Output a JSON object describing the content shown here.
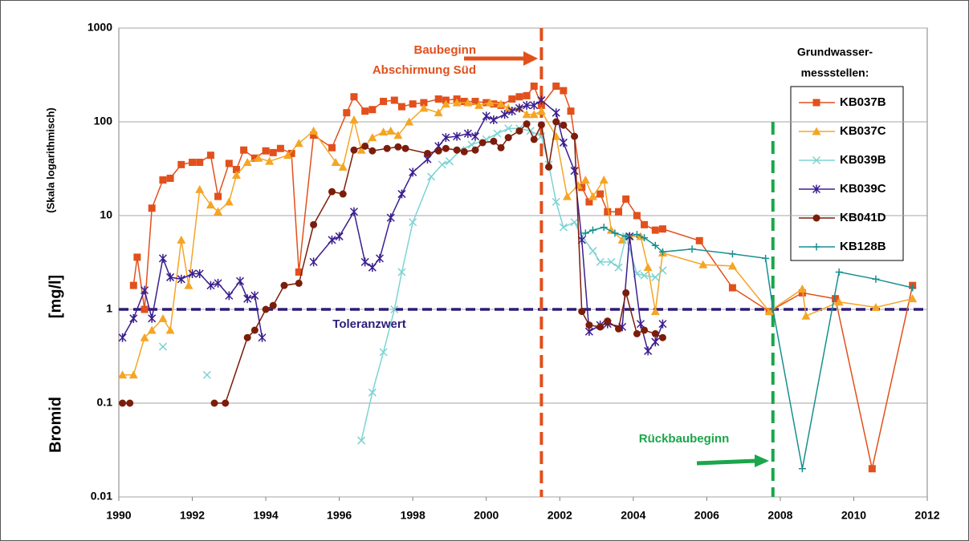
{
  "chart_data": {
    "type": "line",
    "ylabel": [
      "Bromid",
      "[mg/l]"
    ],
    "ylabel_note": "(Skala logarithmisch)",
    "legend_title": [
      "Grundwasser-",
      "messstellen:"
    ],
    "legend": "right",
    "log_y": true,
    "grid": true,
    "xlim": [
      1990,
      2012
    ],
    "xticks": [
      1990,
      1992,
      1994,
      1996,
      1998,
      2000,
      2002,
      2004,
      2006,
      2008,
      2010,
      2012
    ],
    "ylim": [
      0.01,
      1000
    ],
    "yticks": [
      0.01,
      0.1,
      1,
      10,
      100,
      1000
    ],
    "reference_lines": [
      {
        "axis": "y",
        "value": 1,
        "label": [
          "Toleranzwert"
        ],
        "color": "#2e1c7a"
      },
      {
        "axis": "x",
        "value": 2001.5,
        "label": [
          "Baubeginn",
          "Abschirmung Süd"
        ],
        "color": "#e2501c"
      },
      {
        "axis": "x",
        "value": 2007.8,
        "range": [
          0.01,
          100
        ],
        "label": [
          "Rückbaubeginn"
        ],
        "color": "#1aa64a"
      }
    ],
    "series": [
      {
        "name": "KB037B",
        "color": "#e2501c",
        "marker": "square",
        "x": [
          1990.4,
          1990.5,
          1990.7,
          1990.9,
          1991.2,
          1991.4,
          1991.7,
          1992.0,
          1992.2,
          1992.5,
          1992.7,
          1993.0,
          1993.2,
          1993.4,
          1993.7,
          1994.0,
          1994.2,
          1994.4,
          1994.7,
          1994.9,
          1995.3,
          1995.8,
          1996.2,
          1996.4,
          1996.7,
          1996.9,
          1997.2,
          1997.5,
          1997.7,
          1998.0,
          1998.3,
          1998.7,
          1998.9,
          1999.2,
          1999.4,
          1999.7,
          2000.0,
          2000.2,
          2000.4,
          2000.7,
          2000.9,
          2001.1,
          2001.3,
          2001.5,
          2001.9,
          2002.1,
          2002.3,
          2002.6,
          2002.8,
          2003.1,
          2003.3,
          2003.6,
          2003.8,
          2004.1,
          2004.3,
          2004.6,
          2004.8,
          2005.8,
          2006.7,
          2007.7,
          2008.6,
          2009.5,
          2010.5,
          2011.6
        ],
        "values": [
          1.8,
          3.6,
          1.0,
          12,
          24,
          25,
          35,
          37,
          37,
          44,
          16,
          36,
          31,
          50,
          41,
          49,
          47,
          52,
          46,
          2.5,
          72,
          53,
          125,
          185,
          130,
          135,
          165,
          170,
          145,
          155,
          160,
          175,
          170,
          175,
          165,
          165,
          160,
          155,
          150,
          175,
          185,
          190,
          240,
          150,
          240,
          215,
          130,
          20,
          14,
          17,
          11,
          11,
          15,
          10,
          8,
          7,
          7.2,
          5.4,
          1.7,
          0.95,
          1.5,
          1.3,
          0.02,
          1.8
        ]
      },
      {
        "name": "KB037C",
        "color": "#f5a524",
        "marker": "triangle",
        "x": [
          1990.1,
          1990.4,
          1990.7,
          1990.9,
          1991.2,
          1991.4,
          1991.7,
          1991.9,
          1992.2,
          1992.5,
          1992.7,
          1993.0,
          1993.2,
          1993.5,
          1993.8,
          1994.1,
          1994.6,
          1994.9,
          1995.3,
          1995.9,
          1996.1,
          1996.4,
          1996.6,
          1996.9,
          1997.2,
          1997.4,
          1997.6,
          1997.9,
          1998.3,
          1998.7,
          1998.9,
          1999.2,
          1999.5,
          1999.8,
          2000.1,
          2000.4,
          2000.6,
          2000.9,
          2001.1,
          2001.3,
          2001.5,
          2001.9,
          2002.2,
          2002.5,
          2002.7,
          2002.9,
          2003.2,
          2003.4,
          2003.7,
          2003.9,
          2004.2,
          2004.4,
          2004.6,
          2004.8,
          2005.9,
          2006.7,
          2007.7,
          2008.6,
          2008.7,
          2009.6,
          2010.6,
          2011.6
        ],
        "values": [
          0.2,
          0.2,
          0.5,
          0.6,
          0.8,
          0.6,
          5.5,
          1.8,
          19,
          13,
          11,
          14,
          27,
          37,
          41,
          38,
          44,
          59,
          80,
          37,
          33,
          105,
          50,
          68,
          78,
          80,
          72,
          100,
          140,
          125,
          155,
          160,
          160,
          150,
          160,
          155,
          140,
          140,
          120,
          120,
          130,
          70,
          16,
          21,
          24,
          16,
          24,
          7,
          5.5,
          6,
          6,
          2.8,
          0.95,
          4,
          3,
          2.9,
          0.95,
          1.65,
          0.85,
          1.2,
          1.05,
          1.3
        ]
      },
      {
        "name": "KB039B",
        "color": "#7dd3d3",
        "marker": "cross",
        "x": [
          1991.2,
          null,
          1992.4,
          null,
          1996.6,
          1996.9,
          1997.2,
          1997.5,
          1997.7,
          1998.0,
          1998.5,
          1998.8,
          1999.0,
          1999.3,
          1999.6,
          2000.0,
          2000.3,
          2000.6,
          2000.9,
          2001.2,
          2001.5,
          2001.7,
          2001.9,
          2002.1,
          2002.4,
          2002.6,
          2002.9,
          2003.1,
          2003.4,
          2003.6,
          2003.8,
          2004.1,
          2004.3,
          2004.6,
          2004.8
        ],
        "values": [
          0.4,
          null,
          0.2,
          null,
          0.04,
          0.13,
          0.35,
          1.0,
          2.5,
          8.5,
          26,
          35,
          38,
          50,
          57,
          65,
          75,
          85,
          85,
          80,
          70,
          35,
          14,
          7.5,
          8.5,
          6,
          4.2,
          3.2,
          3.2,
          2.8,
          6,
          2.4,
          2.3,
          2.2,
          2.6
        ]
      },
      {
        "name": "KB039C",
        "color": "#3b1e8f",
        "marker": "star",
        "x": [
          1990.1,
          1990.4,
          1990.7,
          1990.9,
          1991.2,
          1991.4,
          1991.7,
          1992.0,
          1992.2,
          1992.5,
          1992.7,
          1993.0,
          1993.3,
          1993.5,
          1993.7,
          1993.9,
          null,
          1995.3,
          1995.8,
          1996.0,
          1996.4,
          1996.7,
          1996.9,
          1997.1,
          1997.4,
          1997.7,
          1998.0,
          1998.4,
          1998.7,
          1998.9,
          1999.2,
          1999.5,
          1999.7,
          2000.0,
          2000.2,
          2000.5,
          2000.7,
          2000.9,
          2001.1,
          2001.3,
          2001.5,
          2001.9,
          2002.1,
          2002.4,
          2002.6,
          2002.8,
          2003.1,
          2003.3,
          2003.7,
          2003.9,
          2004.2,
          2004.4,
          2004.6,
          2004.8
        ],
        "values": [
          0.5,
          0.8,
          1.6,
          0.8,
          3.5,
          2.2,
          2.1,
          2.4,
          2.4,
          1.8,
          1.9,
          1.4,
          2.0,
          1.3,
          1.4,
          0.5,
          null,
          3.2,
          5.5,
          6,
          11,
          3.2,
          2.8,
          3.5,
          9.5,
          17,
          29,
          40,
          55,
          68,
          70,
          75,
          70,
          115,
          105,
          120,
          130,
          140,
          150,
          150,
          170,
          125,
          60,
          30,
          5.5,
          0.58,
          0.68,
          0.7,
          0.65,
          6,
          0.7,
          0.36,
          0.45,
          0.7
        ]
      },
      {
        "name": "KB041D",
        "color": "#7b1d0b",
        "marker": "circle",
        "x": [
          1990.1,
          1990.3,
          null,
          1992.6,
          1992.9,
          1993.5,
          1993.7,
          1994.0,
          1994.2,
          1994.5,
          1994.9,
          1995.3,
          1995.8,
          1996.1,
          1996.4,
          1996.7,
          1996.9,
          1997.3,
          1997.6,
          1997.8,
          1998.4,
          1998.7,
          1998.9,
          1999.2,
          1999.4,
          1999.7,
          1999.9,
          2000.2,
          2000.4,
          2000.6,
          2000.9,
          2001.1,
          2001.3,
          2001.5,
          2001.7,
          2001.9,
          2002.1,
          2002.4,
          2002.6,
          2002.8,
          2003.1,
          2003.3,
          2003.6,
          2003.8,
          2004.1,
          2004.3,
          2004.6,
          2004.8
        ],
        "values": [
          0.1,
          0.1,
          null,
          0.1,
          0.1,
          0.5,
          0.6,
          1.0,
          1.1,
          1.8,
          1.9,
          8,
          18,
          17,
          50,
          55,
          49,
          52,
          54,
          52,
          46,
          49,
          52,
          50,
          48,
          50,
          60,
          62,
          53,
          68,
          80,
          95,
          65,
          93,
          33,
          100,
          92,
          70,
          0.95,
          0.68,
          0.65,
          0.75,
          0.62,
          1.5,
          0.55,
          0.6,
          0.55,
          0.5
        ]
      },
      {
        "name": "KB128B",
        "color": "#178f8f",
        "marker": "plus",
        "x": [
          2002.7,
          2002.9,
          2003.2,
          2003.5,
          2003.8,
          2004.1,
          2004.3,
          2004.6,
          2004.8,
          2005.6,
          2006.7,
          2007.6,
          2007.8,
          2008.6,
          2009.6,
          2010.6,
          2011.6
        ],
        "values": [
          6.5,
          7,
          7.5,
          6.5,
          6,
          6.3,
          5.8,
          4.8,
          4.1,
          4.4,
          3.9,
          3.5,
          1.0,
          0.02,
          2.5,
          2.1,
          1.7
        ]
      }
    ]
  }
}
